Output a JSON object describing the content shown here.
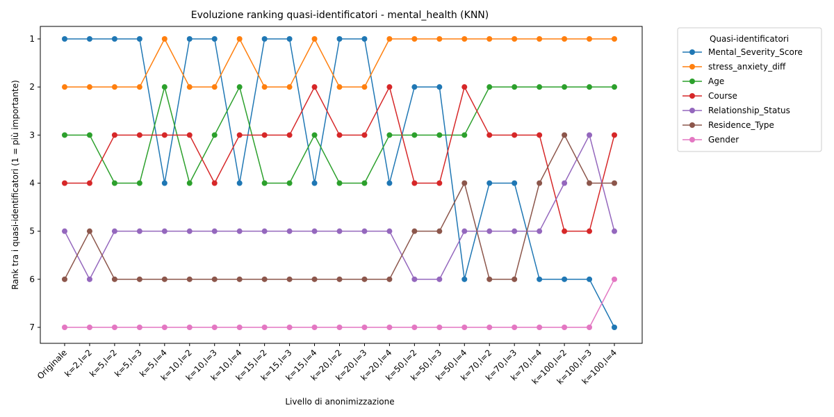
{
  "chart_data": {
    "type": "line",
    "title": "Evoluzione ranking quasi-identificatori - mental_health (KNN)",
    "xlabel": "Livello di anonimizzazione",
    "ylabel": "Rank tra i quasi-identificatori (1 = più importante)",
    "y_inverted": true,
    "ylim": [
      1,
      7
    ],
    "y_ticks": [
      1,
      2,
      3,
      4,
      5,
      6,
      7
    ],
    "grid": false,
    "legend_title": "Quasi-identificatori",
    "legend_position": "outside-top-right",
    "categories": [
      "Originale",
      "k=2,l=2",
      "k=5,l=2",
      "k=5,l=3",
      "k=5,l=4",
      "k=10,l=2",
      "k=10,l=3",
      "k=10,l=4",
      "k=15,l=2",
      "k=15,l=3",
      "k=15,l=4",
      "k=20,l=2",
      "k=20,l=3",
      "k=20,l=4",
      "k=50,l=2",
      "k=50,l=3",
      "k=50,l=4",
      "k=70,l=2",
      "k=70,l=3",
      "k=70,l=4",
      "k=100,l=2",
      "k=100,l=3",
      "k=100,l=4"
    ],
    "series": [
      {
        "name": "Mental_Severity_Score",
        "color": "#1f77b4",
        "values": [
          1,
          1,
          1,
          1,
          4,
          1,
          1,
          4,
          1,
          1,
          4,
          1,
          1,
          4,
          2,
          2,
          6,
          4,
          4,
          6,
          6,
          6,
          7
        ]
      },
      {
        "name": "stress_anxiety_diff",
        "color": "#ff7f0e",
        "values": [
          2,
          2,
          2,
          2,
          1,
          2,
          2,
          1,
          2,
          2,
          1,
          2,
          2,
          1,
          1,
          1,
          1,
          1,
          1,
          1,
          1,
          1,
          1
        ]
      },
      {
        "name": "Age",
        "color": "#2ca02c",
        "values": [
          3,
          3,
          4,
          4,
          2,
          4,
          3,
          2,
          4,
          4,
          3,
          4,
          4,
          3,
          3,
          3,
          3,
          2,
          2,
          2,
          2,
          2,
          2
        ]
      },
      {
        "name": "Course",
        "color": "#d62728",
        "values": [
          4,
          4,
          3,
          3,
          3,
          3,
          4,
          3,
          3,
          3,
          2,
          3,
          3,
          2,
          4,
          4,
          2,
          3,
          3,
          3,
          5,
          5,
          3
        ]
      },
      {
        "name": "Relationship_Status",
        "color": "#9467bd",
        "values": [
          5,
          6,
          5,
          5,
          5,
          5,
          5,
          5,
          5,
          5,
          5,
          5,
          5,
          5,
          6,
          6,
          5,
          5,
          5,
          5,
          4,
          3,
          5
        ]
      },
      {
        "name": "Residence_Type",
        "color": "#8c564b",
        "values": [
          6,
          5,
          6,
          6,
          6,
          6,
          6,
          6,
          6,
          6,
          6,
          6,
          6,
          6,
          5,
          5,
          4,
          6,
          6,
          4,
          3,
          4,
          4
        ]
      },
      {
        "name": "Gender",
        "color": "#e377c2",
        "values": [
          7,
          7,
          7,
          7,
          7,
          7,
          7,
          7,
          7,
          7,
          7,
          7,
          7,
          7,
          7,
          7,
          7,
          7,
          7,
          7,
          7,
          7,
          6
        ]
      }
    ]
  }
}
